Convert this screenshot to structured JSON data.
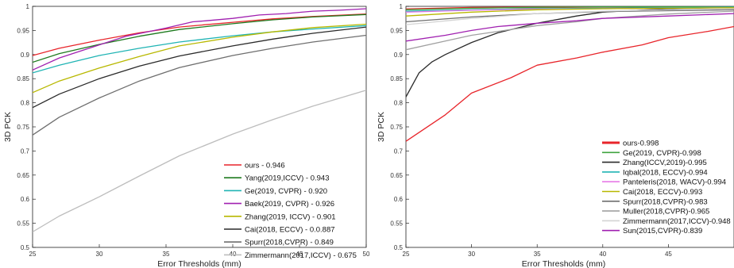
{
  "chart_data": [
    {
      "type": "line",
      "xlabel": "Error Thresholds (mm)",
      "ylabel": "3D PCK",
      "xlim": [
        25,
        50
      ],
      "ylim": [
        0.5,
        1
      ],
      "xticks": [
        "25",
        "30",
        "35",
        "40",
        "45",
        "50"
      ],
      "yticks": [
        "0.5",
        "0.55",
        "0.6",
        "0.65",
        "0.7",
        "0.75",
        "0.8",
        "0.85",
        "0.9",
        "0.95",
        "1"
      ],
      "grid": false,
      "legend_position": "bottom-right",
      "series": [
        {
          "name": "ours - 0.946",
          "color": "#e8242a",
          "x": [
            25,
            27,
            30,
            33,
            36,
            40,
            43,
            46,
            50
          ],
          "y": [
            0.898,
            0.913,
            0.93,
            0.945,
            0.957,
            0.967,
            0.974,
            0.979,
            0.984
          ]
        },
        {
          "name": "Yang(2019,ICCV) - 0.943",
          "color": "#1e7a1e",
          "x": [
            25,
            27,
            30,
            33,
            36,
            40,
            43,
            46,
            50
          ],
          "y": [
            0.884,
            0.902,
            0.921,
            0.938,
            0.952,
            0.964,
            0.972,
            0.978,
            0.983
          ]
        },
        {
          "name": "Ge(2019, CVPR) - 0.920",
          "color": "#20b4b4",
          "x": [
            25,
            27,
            30,
            33,
            36,
            40,
            43,
            46,
            50
          ],
          "y": [
            0.862,
            0.878,
            0.898,
            0.913,
            0.926,
            0.939,
            0.947,
            0.953,
            0.96
          ]
        },
        {
          "name": "Baek(2019, CVPR) - 0.926",
          "color": "#a020b0",
          "x": [
            25,
            27,
            30,
            32,
            35,
            37,
            38,
            40,
            42,
            44,
            46,
            48,
            50
          ],
          "y": [
            0.868,
            0.893,
            0.92,
            0.938,
            0.955,
            0.968,
            0.97,
            0.975,
            0.982,
            0.985,
            0.99,
            0.992,
            0.995
          ]
        },
        {
          "name": "Zhang(2019, ICCV) - 0.901",
          "color": "#b8b800",
          "x": [
            25,
            27,
            30,
            33,
            36,
            40,
            43,
            46,
            50
          ],
          "y": [
            0.821,
            0.845,
            0.872,
            0.896,
            0.918,
            0.936,
            0.947,
            0.956,
            0.963
          ]
        },
        {
          "name": "Cai(2018, ECCV) - 0.0.887",
          "color": "#2a2a2a",
          "x": [
            25,
            27,
            30,
            33,
            36,
            40,
            43,
            46,
            50
          ],
          "y": [
            0.79,
            0.818,
            0.85,
            0.876,
            0.897,
            0.918,
            0.932,
            0.944,
            0.957
          ]
        },
        {
          "name": "Spurr(2018,CVPR) - 0.849",
          "color": "#6e6e6e",
          "x": [
            25,
            27,
            30,
            33,
            36,
            40,
            43,
            46,
            50
          ],
          "y": [
            0.733,
            0.77,
            0.81,
            0.845,
            0.873,
            0.898,
            0.913,
            0.926,
            0.94
          ]
        },
        {
          "name": "Zimmermann(2017,ICCV) - 0.675",
          "color": "#bdbdbd",
          "x": [
            25,
            27,
            30,
            33,
            36,
            40,
            43,
            46,
            50
          ],
          "y": [
            0.532,
            0.565,
            0.605,
            0.648,
            0.69,
            0.735,
            0.765,
            0.793,
            0.826
          ]
        }
      ]
    },
    {
      "type": "line",
      "xlabel": "Error Thresholds (mm)",
      "ylabel": "3D PCK",
      "xlim": [
        25,
        50
      ],
      "ylim": [
        0.5,
        1
      ],
      "xticks": [
        "25",
        "30",
        "35",
        "40",
        "45"
      ],
      "yticks": [
        "0.5",
        "0.55",
        "0.6",
        "0.65",
        "0.7",
        "0.75",
        "0.8",
        "0.85",
        "0.9",
        "0.95",
        "1"
      ],
      "grid": false,
      "legend_position": "bottom-right",
      "series": [
        {
          "name": "ours-0.998",
          "color": "#e8242a",
          "bold": true,
          "x": [
            25,
            30,
            35,
            40,
            45,
            50
          ],
          "y": [
            0.994,
            0.997,
            0.998,
            0.999,
            0.999,
            1.0
          ]
        },
        {
          "name": "Ge(2019, CVPR)-0.998",
          "color": "#3fa33f",
          "x": [
            25,
            30,
            35,
            40,
            45,
            50
          ],
          "y": [
            0.993,
            0.996,
            0.998,
            0.999,
            0.999,
            1.0
          ]
        },
        {
          "name": "Zhang(ICCV,2019)-0.995",
          "color": "#2a2a2a",
          "x": [
            25,
            26,
            27,
            28,
            30,
            32,
            35,
            38,
            40,
            45,
            50
          ],
          "y": [
            0.812,
            0.862,
            0.885,
            0.9,
            0.925,
            0.945,
            0.965,
            0.98,
            0.988,
            0.995,
            0.998
          ]
        },
        {
          "name": "Iqbal(2018, ECCV)-0.994",
          "color": "#20b4b4",
          "x": [
            25,
            30,
            35,
            40,
            45,
            50
          ],
          "y": [
            0.99,
            0.993,
            0.995,
            0.996,
            0.997,
            0.998
          ]
        },
        {
          "name": "Panteleris(2018, WACV)-0.994",
          "color": "#e67ae6",
          "x": [
            25,
            30,
            35,
            40,
            45,
            50
          ],
          "y": [
            0.988,
            0.992,
            0.994,
            0.995,
            0.996,
            0.997
          ]
        },
        {
          "name": "Cai(2018, ECCV)-0.993",
          "color": "#b8b800",
          "x": [
            25,
            30,
            35,
            40,
            45,
            50
          ],
          "y": [
            0.98,
            0.988,
            0.993,
            0.995,
            0.996,
            0.997
          ]
        },
        {
          "name": "Spurr(2018,CVPR)-0.983",
          "color": "#6e6e6e",
          "x": [
            25,
            30,
            35,
            40,
            45,
            50
          ],
          "y": [
            0.968,
            0.978,
            0.985,
            0.989,
            0.991,
            0.993
          ]
        },
        {
          "name": "Muller(2018,CVPR)-0.965",
          "color": "#a0a0a0",
          "x": [
            25,
            28,
            30,
            33,
            35,
            38,
            40,
            45,
            50
          ],
          "y": [
            0.91,
            0.928,
            0.94,
            0.952,
            0.96,
            0.968,
            0.975,
            0.984,
            0.99
          ]
        },
        {
          "name": "Zimmermann(2017,ICCV)-0.948",
          "color": "#d4d4d4",
          "x": [
            25,
            30,
            35,
            40,
            45,
            50
          ],
          "y": [
            0.962,
            0.975,
            0.985,
            0.99,
            0.993,
            0.995
          ]
        },
        {
          "name": "Sun(2015,CVPR)-0.839",
          "color": "#a020b0",
          "x": [
            25,
            28,
            30,
            32,
            35,
            38,
            40,
            45,
            50
          ],
          "y": [
            0.928,
            0.94,
            0.95,
            0.958,
            0.965,
            0.97,
            0.975,
            0.98,
            0.985
          ]
        },
        {
          "name": "",
          "color": "#e8242a",
          "x": [
            25,
            28,
            30,
            33,
            35,
            38,
            40,
            43,
            45,
            48,
            50
          ],
          "y": [
            0.72,
            0.775,
            0.82,
            0.852,
            0.878,
            0.893,
            0.905,
            0.92,
            0.935,
            0.948,
            0.958
          ]
        }
      ]
    }
  ]
}
